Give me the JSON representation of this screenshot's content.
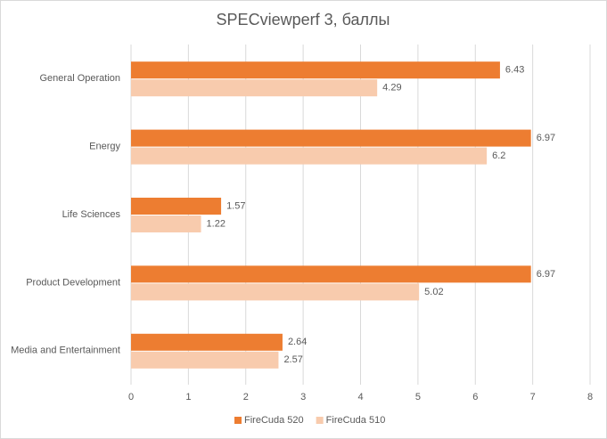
{
  "chart_data": {
    "type": "hbar",
    "title": "SPECviewperf 3, баллы",
    "categories": [
      "General Operation",
      "Energy",
      "Life Sciences",
      "Product Development",
      "Media and Entertainment"
    ],
    "series": [
      {
        "name": "FireCuda 520",
        "color": "#ed7d31",
        "values": [
          6.43,
          6.97,
          1.57,
          6.97,
          2.64
        ]
      },
      {
        "name": "FireCuda 510",
        "color": "#f8cbad",
        "values": [
          4.29,
          6.2,
          1.22,
          5.02,
          2.57
        ]
      }
    ],
    "xlim": [
      0,
      8
    ],
    "xticks": [
      0,
      1,
      2,
      3,
      4,
      5,
      6,
      7,
      8
    ],
    "grid": true,
    "legend": "bottom"
  }
}
